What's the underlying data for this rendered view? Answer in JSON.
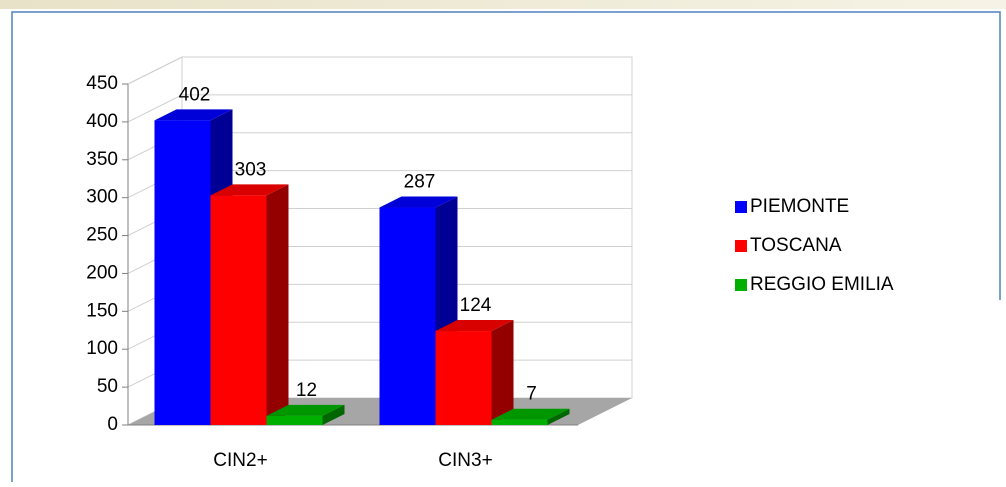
{
  "chart_data": {
    "type": "bar3d",
    "categories": [
      "CIN2+",
      "CIN3+"
    ],
    "series": [
      {
        "name": "PIEMONTE",
        "color": "#0000ff",
        "values": [
          402,
          287
        ]
      },
      {
        "name": "TOSCANA",
        "color": "#ff0000",
        "values": [
          303,
          124
        ]
      },
      {
        "name": "REGGIO EMILIA",
        "color": "#00b000",
        "values": [
          12,
          7
        ]
      }
    ],
    "ylim": [
      0,
      450
    ],
    "yticks": [
      0,
      50,
      100,
      150,
      200,
      250,
      300,
      350,
      400,
      450
    ],
    "grid": true,
    "legend": "right"
  }
}
